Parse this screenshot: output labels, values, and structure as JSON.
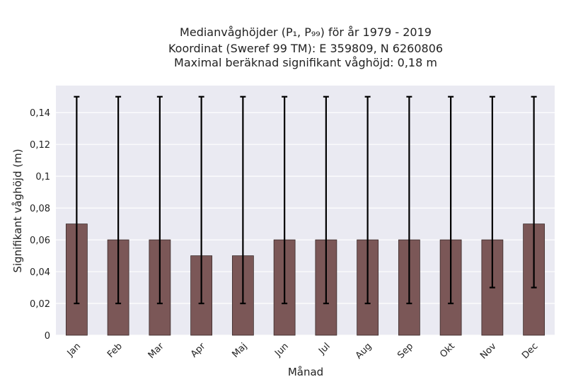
{
  "chart_data": {
    "type": "bar",
    "title_lines": [
      "Medianvåghöjder (P₁, P₉₉) för år 1979 - 2019",
      "Koordinat (Sweref 99 TM): E 359809, N 6260806",
      "Maximal beräknad signifikant våghöjd: 0,18 m"
    ],
    "xlabel": "Månad",
    "ylabel": "Signifikant våghöjd (m)",
    "categories": [
      "Jan",
      "Feb",
      "Mar",
      "Apr",
      "Maj",
      "Jun",
      "Jul",
      "Aug",
      "Sep",
      "Okt",
      "Nov",
      "Dec"
    ],
    "values": [
      0.07,
      0.06,
      0.06,
      0.05,
      0.05,
      0.06,
      0.06,
      0.06,
      0.06,
      0.06,
      0.06,
      0.07
    ],
    "p1": [
      0.02,
      0.02,
      0.02,
      0.02,
      0.02,
      0.02,
      0.02,
      0.02,
      0.02,
      0.02,
      0.03,
      0.03
    ],
    "p99": [
      0.15,
      0.15,
      0.15,
      0.15,
      0.15,
      0.15,
      0.15,
      0.15,
      0.15,
      0.15,
      0.15,
      0.15
    ],
    "ylim": [
      0,
      0.157
    ],
    "yticks": [
      0,
      0.02,
      0.04,
      0.06,
      0.08,
      0.1,
      0.12,
      0.14
    ],
    "ytick_labels": [
      "0",
      "0,02",
      "0,04",
      "0,06",
      "0,08",
      "0,1",
      "0,12",
      "0,14"
    ],
    "grid": true,
    "colors": {
      "bar": "#7b5757",
      "bar_edge": "#3a2a2a",
      "errorbar": "#000000",
      "plot_background": "#eaeaf2",
      "grid": "#ffffff"
    }
  }
}
